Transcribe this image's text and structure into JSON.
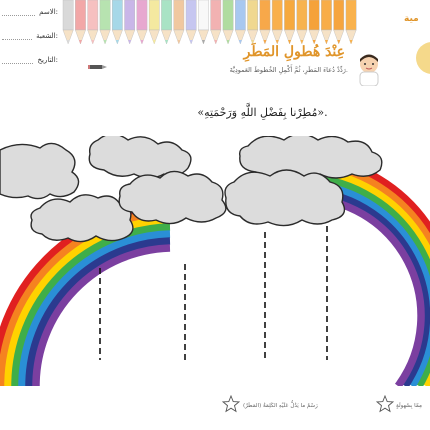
{
  "header": {
    "form": [
      {
        "label": "الاسم:"
      },
      {
        "label": "الشعبة:"
      },
      {
        "label": "التاريخ:"
      }
    ],
    "corner_label": "مية"
  },
  "lesson": {
    "title": "عِنْدَ هُطولِ المَطَرِ",
    "instruction": "رَدِّدْ دُعاءَ المَطَرِ، ثُمَّ أَكْمِلِ الخُطوطَ العَمودِيَّةَ."
  },
  "quote": "«مُطِرْنا بِفَضْلِ اللَّهِ وَرَحْمَتِهِ».",
  "footer": {
    "left_text": "رَسْمُ ما يَدُلُّ عَلَيْهِ الكَلِمَةُ (المَطَرُ)",
    "right_text": "مِمّا بِسُهولَةٍ"
  },
  "colors": {
    "accent": "#e0952a",
    "cloud_fill": "#dcdcdc",
    "cloud_stroke": "#2b2b2b",
    "rainbow": [
      "#e02020",
      "#f58220",
      "#ffd200",
      "#3fae49",
      "#2a8fd6",
      "#2b3a8f",
      "#7b3fa0"
    ]
  },
  "icons": [
    "pencil-icon",
    "star-icon",
    "star-icon"
  ]
}
